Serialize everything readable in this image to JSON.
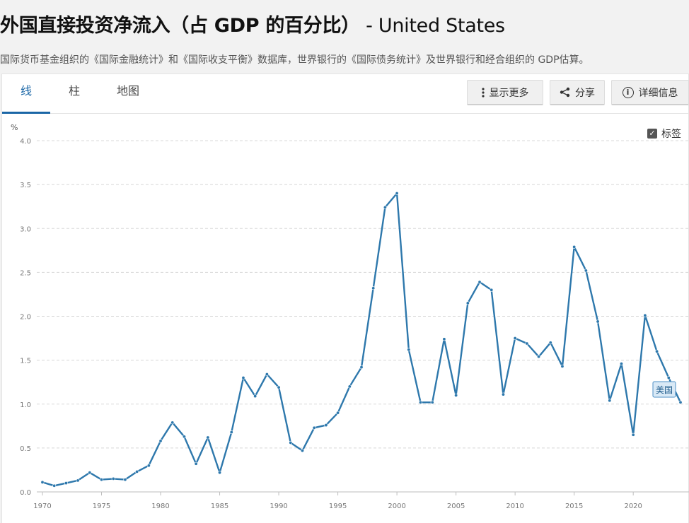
{
  "header": {
    "title": "外国直接投资净流入（占 GDP 的百分比）",
    "title_suffix": " - United States",
    "subtitle": "国际货币基金组织的《国际金融统计》和《国际收支平衡》数据库，世界银行的《国际债务统计》及世界银行和经合组织的 GDP估算。"
  },
  "tabs": [
    {
      "label": "线",
      "active": true
    },
    {
      "label": "柱",
      "active": false
    },
    {
      "label": "地图",
      "active": false
    }
  ],
  "toolbar": {
    "more_label": "显示更多",
    "share_label": "分享",
    "details_label": "详细信息",
    "more_icon": "vertical-dots-icon",
    "share_icon": "share-icon",
    "details_icon": "info-icon"
  },
  "labels_toggle": {
    "label": "标签",
    "checked": true
  },
  "chart_data": {
    "type": "line",
    "ylabel": "%",
    "ylim": [
      0,
      4.0
    ],
    "yticks": [
      "0.0",
      "0.5",
      "1.0",
      "1.5",
      "2.0",
      "2.5",
      "3.0",
      "3.5",
      "4.0"
    ],
    "xlim": [
      1970,
      2024
    ],
    "xticks": [
      "1970",
      "1975",
      "1980",
      "1985",
      "1990",
      "1995",
      "2000",
      "2005",
      "2010",
      "2015",
      "2020"
    ],
    "grid": true,
    "line_color": "#2e78ac",
    "series": [
      {
        "name": "美国",
        "x": [
          1970,
          1971,
          1972,
          1973,
          1974,
          1975,
          1976,
          1977,
          1978,
          1979,
          1980,
          1981,
          1982,
          1983,
          1984,
          1985,
          1986,
          1987,
          1988,
          1989,
          1990,
          1991,
          1992,
          1993,
          1994,
          1995,
          1996,
          1997,
          1998,
          1999,
          2000,
          2001,
          2002,
          2003,
          2004,
          2005,
          2006,
          2007,
          2008,
          2009,
          2010,
          2011,
          2012,
          2013,
          2014,
          2015,
          2016,
          2017,
          2018,
          2019,
          2020,
          2021,
          2022,
          2023,
          2024
        ],
        "values": [
          0.11,
          0.07,
          0.1,
          0.13,
          0.22,
          0.14,
          0.15,
          0.14,
          0.23,
          0.3,
          0.58,
          0.79,
          0.63,
          0.32,
          0.62,
          0.22,
          0.68,
          1.3,
          1.09,
          1.34,
          1.19,
          0.56,
          0.47,
          0.73,
          0.76,
          0.9,
          1.2,
          1.42,
          2.32,
          3.24,
          3.4,
          1.62,
          1.02,
          1.02,
          1.74,
          1.1,
          2.15,
          2.39,
          2.3,
          1.11,
          1.75,
          1.69,
          1.54,
          1.7,
          1.43,
          2.79,
          2.52,
          1.94,
          1.04,
          1.46,
          0.65,
          2.01,
          1.6,
          1.3,
          1.02
        ]
      }
    ]
  }
}
